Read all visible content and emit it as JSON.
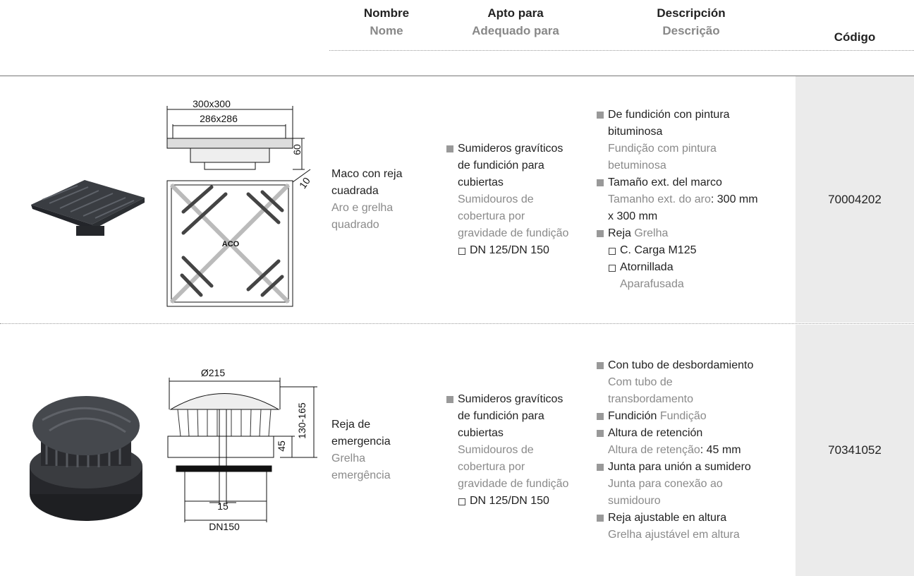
{
  "header": {
    "columns": [
      {
        "es": "Nombre",
        "pt": "Nome"
      },
      {
        "es": "Apto para",
        "pt": "Adequado para"
      },
      {
        "es": "Descripción",
        "pt": "Descrição"
      },
      {
        "es": "Código"
      }
    ]
  },
  "rows": [
    {
      "drawing_labels": [
        "300x300",
        "286x286",
        "60",
        "10",
        "ACO"
      ],
      "name": {
        "es": "Maco con reja cuadrada",
        "pt": "Aro e grelha quadrado"
      },
      "suitable": {
        "es": "Sumideros gravíticos de fundición para cubiertas",
        "pt": "Sumidouros de cobertura por gravidade de fundição",
        "option": "DN 125/DN 150"
      },
      "description": [
        {
          "es": "De fundición con pintura bituminosa",
          "pt": "Fundição com pintura betuminosa"
        },
        {
          "es": "Tamaño ext. del marco",
          "pt": "Tamanho ext. do aro",
          "value": ": 300 mm x 300 mm"
        },
        {
          "es": "Reja",
          "pt": "Grelha",
          "options": [
            {
              "es": "C. Carga M125"
            },
            {
              "es": "Atornillada",
              "pt": "Aparafusada"
            }
          ]
        }
      ],
      "code": "70004202"
    },
    {
      "drawing_labels": [
        "Ø215",
        "130-165",
        "45",
        "15",
        "DN150"
      ],
      "name": {
        "es": "Reja de emergencia",
        "pt": "Grelha emergência"
      },
      "suitable": {
        "es": "Sumideros gravíticos de fundición para cubiertas",
        "pt": "Sumidouros de cobertura por gravidade de fundição",
        "option": "DN 125/DN 150"
      },
      "description": [
        {
          "es": "Con tubo de desbordamiento",
          "pt": "Com tubo de transbordamento"
        },
        {
          "es": "Fundición",
          "pt": "Fundição"
        },
        {
          "es": "Altura de retención",
          "pt": "Altura de retenção",
          "value": ": 45 mm"
        },
        {
          "es": "Junta para unión a sumidero",
          "pt": "Junta para conexão ao sumidouro"
        },
        {
          "es": "Reja ajustable en altura",
          "pt": "Grelha ajustável em altura"
        }
      ],
      "code": "70341052"
    }
  ]
}
